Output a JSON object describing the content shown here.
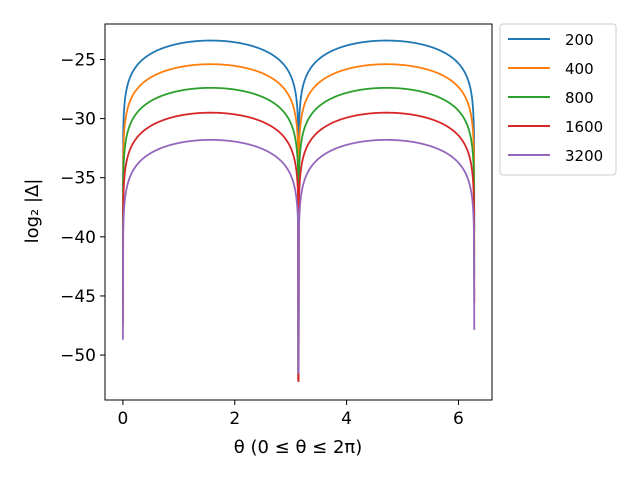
{
  "chart_data": {
    "type": "line",
    "xlabel": "θ  (0 ≤ θ ≤ 2π)",
    "ylabel": "log₂ |Δ|",
    "xlim": [
      -0.32,
      6.6
    ],
    "ylim": [
      -53.8,
      -22.0
    ],
    "xticks": [
      0,
      2,
      4,
      6
    ],
    "xtick_labels": [
      "0",
      "2",
      "4",
      "6"
    ],
    "yticks": [
      -25,
      -30,
      -35,
      -40,
      -45,
      -50
    ],
    "ytick_labels": [
      "−25",
      "−30",
      "−35",
      "−40",
      "−45",
      "−50"
    ],
    "grid": false,
    "legend_placement": "outside-top-right",
    "x_range": [
      0,
      6.2832
    ],
    "series": [
      {
        "name": "200",
        "color": "#1f77b4",
        "peak": -23.4,
        "dip_left": -45.5,
        "dip_mid": -52.0
      },
      {
        "name": "400",
        "color": "#ff7f0e",
        "peak": -25.4,
        "dip_left": -46.5,
        "dip_mid": -52.1
      },
      {
        "name": "800",
        "color": "#2ca02c",
        "peak": -27.4,
        "dip_left": -47.0,
        "dip_mid": -52.1
      },
      {
        "name": "1600",
        "color": "#d62728",
        "peak": -29.5,
        "dip_left": -47.5,
        "dip_mid": -52.2
      },
      {
        "name": "3200",
        "color": "#9467bd",
        "peak": -31.8,
        "dip_left": -48.7,
        "dip_mid": -51.5
      }
    ]
  }
}
